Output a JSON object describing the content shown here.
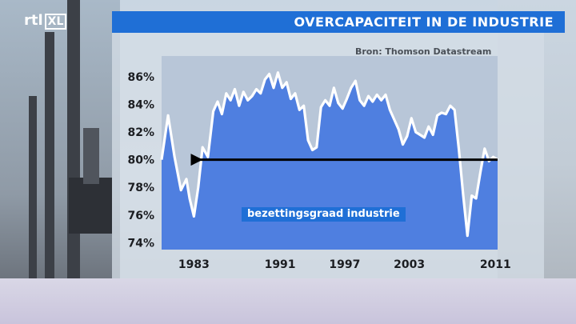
{
  "header": {
    "logo_text": "rtl",
    "logo_badge": "XL",
    "title": "OVERCAPACITEIT IN DE INDUSTRIE",
    "source": "Bron: Thomson Datastream"
  },
  "colors": {
    "accent": "#1f6fd6",
    "area_fill": "#4f7fe0",
    "plot_background": "#b8c6d8",
    "line": "#ffffff",
    "arrow": "#000000"
  },
  "chart_data": {
    "type": "area",
    "title": "OVERCAPACITEIT IN DE INDUSTRIE",
    "series": [
      {
        "name": "bezettingsgraad industrie",
        "x": [
          1980.0,
          1980.6,
          1981.2,
          1981.8,
          1982.3,
          1982.6,
          1983.0,
          1983.4,
          1983.8,
          1984.3,
          1984.8,
          1985.2,
          1985.6,
          1986.0,
          1986.4,
          1986.8,
          1987.2,
          1987.6,
          1988.0,
          1988.4,
          1988.8,
          1989.2,
          1989.6,
          1990.0,
          1990.4,
          1990.8,
          1991.2,
          1991.6,
          1992.0,
          1992.4,
          1992.8,
          1993.2,
          1993.6,
          1994.0,
          1994.4,
          1994.8,
          1995.2,
          1995.6,
          1996.0,
          1996.4,
          1996.8,
          1997.2,
          1997.6,
          1998.0,
          1998.4,
          1998.8,
          1999.2,
          1999.6,
          2000.0,
          2000.4,
          2000.8,
          2001.2,
          2001.6,
          2002.0,
          2002.4,
          2002.8,
          2003.2,
          2003.6,
          2004.0,
          2004.4,
          2004.8,
          2005.2,
          2005.6,
          2006.0,
          2006.4,
          2006.8,
          2007.2,
          2007.6,
          2008.0,
          2008.4,
          2008.8,
          2009.2,
          2009.6,
          2010.0,
          2010.4,
          2010.8,
          2011.2
        ],
        "values": [
          80.0,
          83.2,
          80.2,
          77.8,
          78.6,
          77.2,
          75.9,
          78.0,
          80.9,
          80.2,
          83.5,
          84.2,
          83.3,
          84.8,
          84.3,
          85.1,
          83.9,
          84.9,
          84.3,
          84.6,
          85.1,
          84.8,
          85.8,
          86.2,
          85.2,
          86.3,
          85.2,
          85.6,
          84.4,
          84.8,
          83.6,
          83.9,
          81.4,
          80.7,
          80.9,
          83.8,
          84.3,
          83.9,
          85.2,
          84.1,
          83.7,
          84.4,
          85.2,
          85.7,
          84.3,
          83.9,
          84.6,
          84.2,
          84.7,
          84.3,
          84.7,
          83.6,
          82.9,
          82.2,
          81.1,
          81.7,
          83.0,
          82.0,
          81.8,
          81.6,
          82.4,
          81.8,
          83.2,
          83.4,
          83.3,
          83.9,
          83.6,
          80.8,
          77.5,
          74.5,
          77.4,
          77.2,
          79.1,
          80.8,
          79.9,
          80.2,
          80.0
        ]
      }
    ],
    "x_ticks": [
      "1983",
      "1991",
      "1997",
      "2003",
      "2011"
    ],
    "x_tick_values": [
      1983,
      1991,
      1997,
      2003,
      2011
    ],
    "y_ticks": [
      "86%",
      "84%",
      "82%",
      "80%",
      "78%",
      "76%",
      "74%"
    ],
    "y_tick_values": [
      86,
      84,
      82,
      80,
      78,
      76,
      74
    ],
    "xlim": [
      1980,
      2011.2
    ],
    "ylim": [
      73.5,
      87.5
    ],
    "annotation": {
      "type": "arrow",
      "direction": "left",
      "y": 80,
      "x_from": 2011.2,
      "x_to": 1983.6
    },
    "grid": false,
    "legend": "none"
  }
}
